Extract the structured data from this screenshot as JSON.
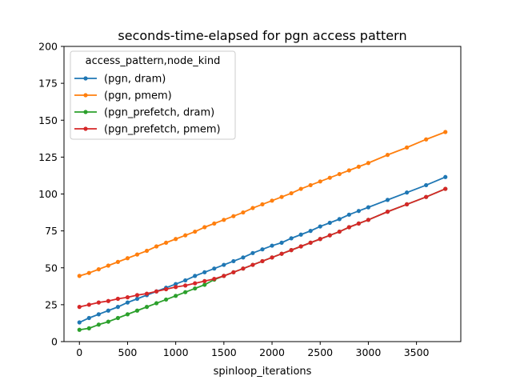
{
  "chart_data": {
    "type": "line",
    "title": "seconds-time-elapsed for pgn access pattern",
    "xlabel": "spinloop_iterations",
    "ylabel": "",
    "xlim": [
      -160,
      3960
    ],
    "ylim": [
      0,
      200
    ],
    "xticks": [
      0,
      500,
      1000,
      1500,
      2000,
      2500,
      3000,
      3500
    ],
    "yticks": [
      0,
      25,
      50,
      75,
      100,
      125,
      150,
      175,
      200
    ],
    "grid": false,
    "legend": {
      "title": "access_pattern,node_kind",
      "placement": "top-left"
    },
    "series": [
      {
        "name": "(pgn, dram)",
        "color": "#1f77b4",
        "x": [
          0,
          100,
          200,
          300,
          400,
          500,
          600,
          700,
          800,
          900,
          1000,
          1100,
          1200,
          1300,
          1400,
          1500,
          1600,
          1700,
          1800,
          1900,
          2000,
          2100,
          2200,
          2300,
          2400,
          2500,
          2600,
          2700,
          2800,
          2900,
          3000,
          3200,
          3400,
          3600,
          3800
        ],
        "y": [
          13,
          16,
          18.5,
          21,
          23.5,
          26.5,
          29,
          31.5,
          34,
          36.5,
          39,
          41.5,
          44.5,
          47,
          49.5,
          52,
          54.5,
          57,
          60,
          62.5,
          65,
          67,
          70,
          72.5,
          75,
          78,
          80.5,
          83,
          86,
          88.5,
          91,
          96,
          101,
          106,
          111.5
        ]
      },
      {
        "name": "(pgn, pmem)",
        "color": "#ff7f0e",
        "x": [
          0,
          100,
          200,
          300,
          400,
          500,
          600,
          700,
          800,
          900,
          1000,
          1100,
          1200,
          1300,
          1400,
          1500,
          1600,
          1700,
          1800,
          1900,
          2000,
          2100,
          2200,
          2300,
          2400,
          2500,
          2600,
          2700,
          2800,
          2900,
          3000,
          3200,
          3400,
          3600,
          3800
        ],
        "y": [
          44.5,
          46.5,
          49,
          51.5,
          54,
          56.5,
          59,
          61.5,
          64.5,
          67,
          69.5,
          72,
          74.5,
          77.5,
          80,
          82.5,
          85,
          87.5,
          90.5,
          93,
          95.5,
          98,
          100.5,
          103.5,
          106,
          108.5,
          111,
          113.5,
          116,
          118.5,
          121,
          126.5,
          131.5,
          137,
          142
        ]
      },
      {
        "name": "(pgn_prefetch, dram)",
        "color": "#2ca02c",
        "x": [
          0,
          100,
          200,
          300,
          400,
          500,
          600,
          700,
          800,
          900,
          1000,
          1100,
          1200,
          1300,
          1400,
          1500,
          1600,
          1700,
          1800,
          1900,
          2000,
          2100,
          2200,
          2300,
          2400,
          2500,
          2600,
          2700,
          2800,
          2900,
          3000,
          3200,
          3400,
          3600,
          3800
        ],
        "y": [
          8,
          9,
          11.5,
          13.5,
          16,
          18.5,
          21,
          23.5,
          26,
          28.5,
          31,
          33.5,
          36,
          38.5,
          42,
          44.5,
          47,
          49.5,
          52,
          54.5,
          57,
          59.5,
          62,
          64.5,
          67,
          69.5,
          72,
          74.5,
          77.5,
          80,
          82.5,
          88,
          93,
          98,
          103.5
        ]
      },
      {
        "name": "(pgn_prefetch, pmem)",
        "color": "#d62728",
        "x": [
          0,
          100,
          200,
          300,
          400,
          500,
          600,
          700,
          800,
          900,
          1000,
          1100,
          1200,
          1300,
          1400,
          1500,
          1600,
          1700,
          1800,
          1900,
          2000,
          2100,
          2200,
          2300,
          2400,
          2500,
          2600,
          2700,
          2800,
          2900,
          3000,
          3200,
          3400,
          3600,
          3800
        ],
        "y": [
          23.5,
          25,
          26.5,
          27.5,
          29,
          30,
          31.5,
          32.5,
          34,
          35.5,
          37,
          38,
          39.5,
          41,
          42.5,
          44.5,
          47,
          49.5,
          52,
          54.5,
          57,
          59.5,
          62,
          64.5,
          67,
          69.5,
          72,
          74.5,
          77.5,
          80,
          82.5,
          88,
          93,
          98,
          103.5
        ]
      }
    ]
  }
}
